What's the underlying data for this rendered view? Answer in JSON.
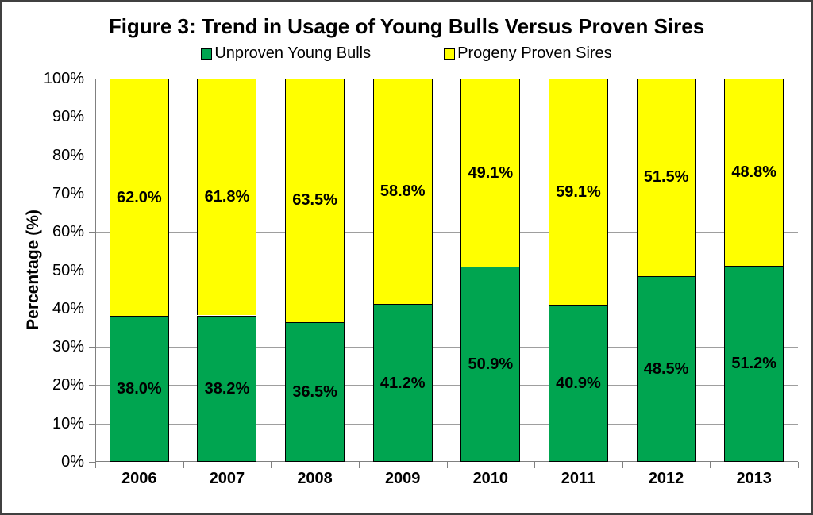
{
  "chart_data": {
    "type": "bar",
    "stacked": true,
    "title": "Figure 3: Trend in Usage of Young Bulls Versus Proven Sires",
    "ylabel": "Percentage (%)",
    "xlabel": "",
    "categories": [
      "2006",
      "2007",
      "2008",
      "2009",
      "2010",
      "2011",
      "2012",
      "2013"
    ],
    "series": [
      {
        "name": "Unproven Young Bulls",
        "color": "#00A550",
        "values": [
          38.0,
          38.2,
          36.5,
          41.2,
          50.9,
          40.9,
          48.5,
          51.2
        ],
        "labels": [
          "38.0%",
          "38.2%",
          "36.5%",
          "41.2%",
          "50.9%",
          "40.9%",
          "48.5%",
          "51.2%"
        ]
      },
      {
        "name": "Progeny Proven Sires",
        "color": "#FFFF00",
        "values": [
          62.0,
          61.8,
          63.5,
          58.8,
          49.1,
          59.1,
          51.5,
          48.8
        ],
        "labels": [
          "62.0%",
          "61.8%",
          "63.5%",
          "58.8%",
          "49.1%",
          "59.1%",
          "51.5%",
          "48.8%"
        ]
      }
    ],
    "ylim": [
      0,
      100
    ],
    "ytick_step": 10,
    "yticks": [
      "0%",
      "10%",
      "20%",
      "30%",
      "40%",
      "50%",
      "60%",
      "70%",
      "80%",
      "90%",
      "100%"
    ],
    "grid": true,
    "legend_position": "top-center",
    "gridline_color": "#9E9E9E",
    "axis_color": "#808080",
    "bar_border_color": "#000000"
  }
}
